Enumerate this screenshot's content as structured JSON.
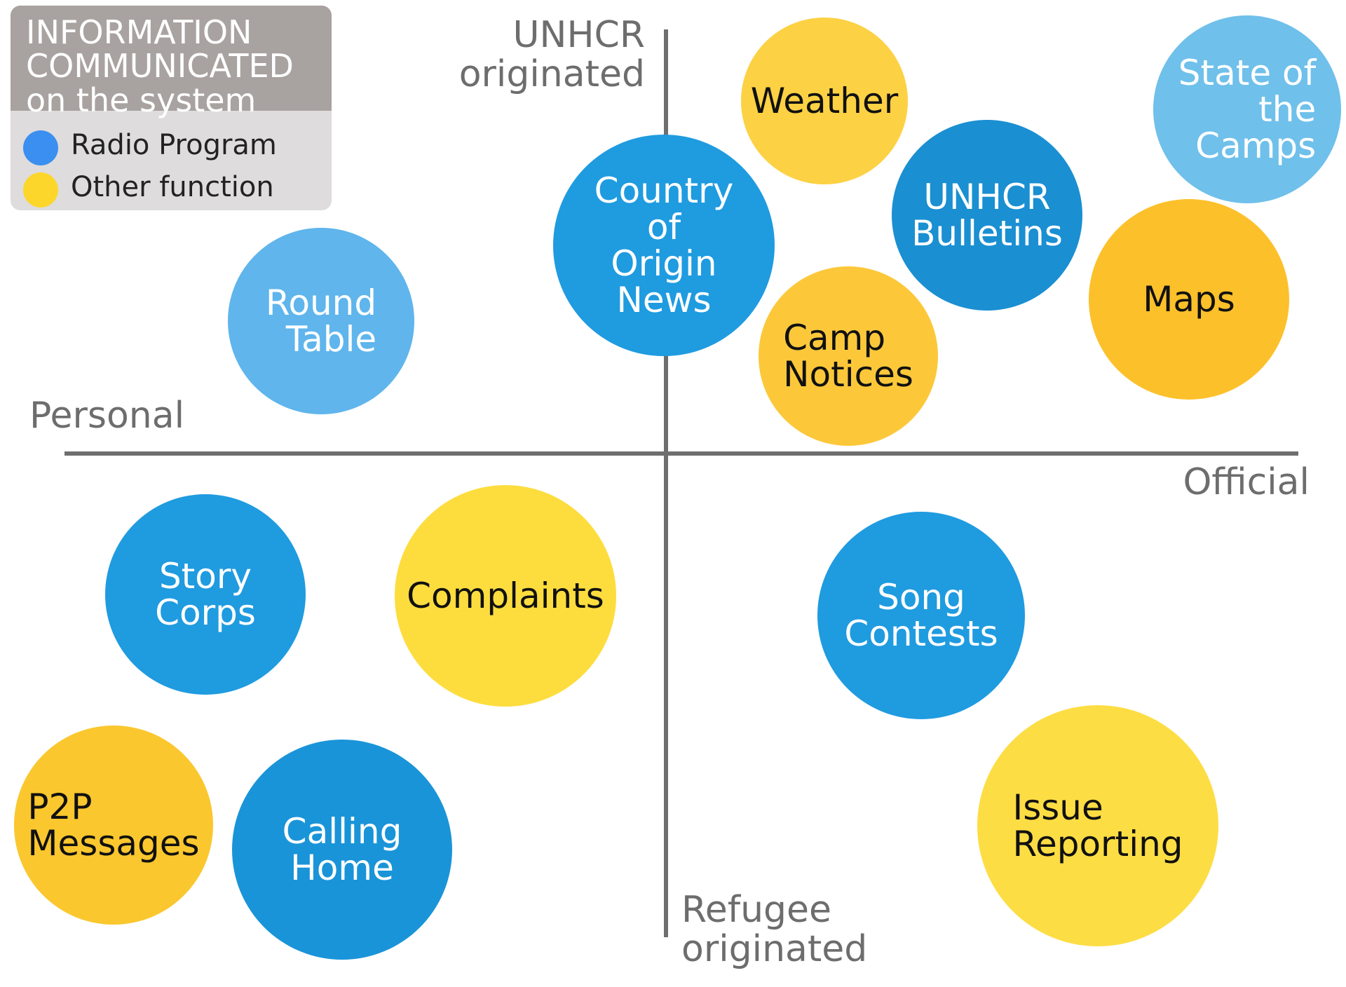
{
  "legend": {
    "title": "INFORMATION\nCOMMUNICATED\non the system",
    "items": [
      {
        "label": "Radio Program",
        "color": "#3a8ff0"
      },
      {
        "label": "Other function",
        "color": "#fcd62a"
      }
    ]
  },
  "axes": {
    "top": "UNHCR\noriginated",
    "bottom": "Refugee\noriginated",
    "left": "Personal",
    "right": "Official"
  },
  "colors": {
    "axis": "#6e6e6e",
    "axis_text": "#6d6d6d",
    "blue": "#1f9be0",
    "blue_dark": "#1a8fd2",
    "blue_light": "#5fb5ec",
    "blue_pale": "#6fc0ea",
    "yellow": "#fcd144",
    "yellow_bright": "#fddd3e",
    "yellow_orange": "#fcc02a"
  },
  "bubbles": [
    {
      "id": "weather",
      "label": "Weather",
      "category": "other",
      "text_color": "#111111"
    },
    {
      "id": "state-of-the-camps",
      "label": "State of\nthe\nCamps",
      "category": "radio",
      "text_color": "#ffffff"
    },
    {
      "id": "country-of-origin-news",
      "label": "Country\nof\nOrigin\nNews",
      "category": "radio",
      "text_color": "#ffffff"
    },
    {
      "id": "unhcr-bulletins",
      "label": "UNHCR\nBulletins",
      "category": "radio",
      "text_color": "#ffffff"
    },
    {
      "id": "maps",
      "label": "Maps",
      "category": "other",
      "text_color": "#111111"
    },
    {
      "id": "camp-notices",
      "label": "Camp\nNotices",
      "category": "other",
      "text_color": "#111111"
    },
    {
      "id": "round-table",
      "label": "Round\nTable",
      "category": "radio",
      "text_color": "#ffffff"
    },
    {
      "id": "story-corps",
      "label": "Story\nCorps",
      "category": "radio",
      "text_color": "#ffffff"
    },
    {
      "id": "complaints",
      "label": "Complaints",
      "category": "other",
      "text_color": "#111111"
    },
    {
      "id": "song-contests",
      "label": "Song\nContests",
      "category": "radio",
      "text_color": "#ffffff"
    },
    {
      "id": "p2p-messages",
      "label": "P2P\nMessages",
      "category": "other",
      "text_color": "#111111"
    },
    {
      "id": "calling-home",
      "label": "Calling\nHome",
      "category": "radio",
      "text_color": "#ffffff"
    },
    {
      "id": "issue-reporting",
      "label": "Issue\nReporting",
      "category": "other",
      "text_color": "#111111"
    }
  ]
}
